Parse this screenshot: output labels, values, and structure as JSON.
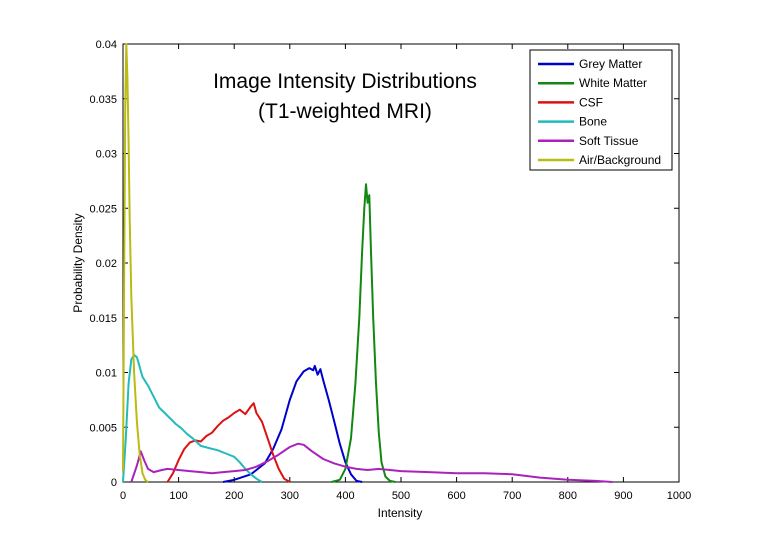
{
  "chart_data": {
    "type": "line",
    "title_lines": [
      "Image Intensity Distributions",
      "(T1-weighted MRI)"
    ],
    "xlabel": "Intensity",
    "ylabel": "Probability Density",
    "xlim": [
      0,
      1000
    ],
    "ylim": [
      0,
      0.04
    ],
    "x_ticks": [
      0,
      100,
      200,
      300,
      400,
      500,
      600,
      700,
      800,
      900,
      1000
    ],
    "x_tick_labels": [
      "0",
      "100",
      "200",
      "300",
      "400",
      "500",
      "600",
      "700",
      "800",
      "900",
      "1000"
    ],
    "y_ticks": [
      0,
      0.005,
      0.01,
      0.015,
      0.02,
      0.025,
      0.03,
      0.035,
      0.04
    ],
    "y_tick_labels": [
      "0",
      "0.005",
      "0.01",
      "0.015",
      "0.02",
      "0.025",
      "0.03",
      "0.035",
      "0.04"
    ],
    "grid": false,
    "legend_position": "top-right",
    "series": [
      {
        "name": "Grey Matter",
        "color": "#0000cc",
        "points": [
          [
            180,
            0
          ],
          [
            200,
            0.0002
          ],
          [
            230,
            0.0007
          ],
          [
            255,
            0.0017
          ],
          [
            270,
            0.003
          ],
          [
            285,
            0.0048
          ],
          [
            300,
            0.0075
          ],
          [
            312,
            0.0092
          ],
          [
            325,
            0.0101
          ],
          [
            335,
            0.0104
          ],
          [
            342,
            0.0102
          ],
          [
            345,
            0.0106
          ],
          [
            350,
            0.0098
          ],
          [
            355,
            0.0103
          ],
          [
            360,
            0.0093
          ],
          [
            370,
            0.0075
          ],
          [
            380,
            0.0055
          ],
          [
            390,
            0.0035
          ],
          [
            400,
            0.0018
          ],
          [
            410,
            0.0007
          ],
          [
            420,
            0.0001
          ],
          [
            430,
            0
          ]
        ]
      },
      {
        "name": "White Matter",
        "color": "#118811",
        "points": [
          [
            375,
            0
          ],
          [
            390,
            0.0002
          ],
          [
            400,
            0.0012
          ],
          [
            410,
            0.004
          ],
          [
            418,
            0.009
          ],
          [
            425,
            0.015
          ],
          [
            430,
            0.021
          ],
          [
            434,
            0.025
          ],
          [
            437,
            0.0272
          ],
          [
            440,
            0.0255
          ],
          [
            443,
            0.0262
          ],
          [
            446,
            0.021
          ],
          [
            450,
            0.015
          ],
          [
            455,
            0.009
          ],
          [
            460,
            0.0045
          ],
          [
            465,
            0.0018
          ],
          [
            472,
            0.0005
          ],
          [
            480,
            0.0001
          ],
          [
            490,
            0
          ]
        ]
      },
      {
        "name": "CSF",
        "color": "#dd1111",
        "points": [
          [
            80,
            0
          ],
          [
            90,
            0.0008
          ],
          [
            100,
            0.002
          ],
          [
            110,
            0.003
          ],
          [
            120,
            0.0036
          ],
          [
            130,
            0.0038
          ],
          [
            140,
            0.0037
          ],
          [
            150,
            0.0042
          ],
          [
            160,
            0.0045
          ],
          [
            170,
            0.0051
          ],
          [
            180,
            0.0056
          ],
          [
            190,
            0.0059
          ],
          [
            200,
            0.0063
          ],
          [
            210,
            0.0066
          ],
          [
            220,
            0.0062
          ],
          [
            230,
            0.0069
          ],
          [
            235,
            0.0072
          ],
          [
            240,
            0.0063
          ],
          [
            250,
            0.0055
          ],
          [
            260,
            0.004
          ],
          [
            270,
            0.0025
          ],
          [
            280,
            0.0012
          ],
          [
            290,
            0.0003
          ],
          [
            300,
            0
          ]
        ]
      },
      {
        "name": "Bone",
        "color": "#22bbbb",
        "points": [
          [
            0,
            0
          ],
          [
            5,
            0.004
          ],
          [
            10,
            0.009
          ],
          [
            15,
            0.0112
          ],
          [
            20,
            0.0116
          ],
          [
            25,
            0.0114
          ],
          [
            30,
            0.0105
          ],
          [
            35,
            0.0096
          ],
          [
            45,
            0.0088
          ],
          [
            55,
            0.0078
          ],
          [
            65,
            0.0068
          ],
          [
            75,
            0.0063
          ],
          [
            85,
            0.0058
          ],
          [
            95,
            0.0053
          ],
          [
            105,
            0.0049
          ],
          [
            115,
            0.0044
          ],
          [
            125,
            0.004
          ],
          [
            140,
            0.0033
          ],
          [
            155,
            0.0031
          ],
          [
            170,
            0.0029
          ],
          [
            185,
            0.0026
          ],
          [
            200,
            0.0023
          ],
          [
            210,
            0.0018
          ],
          [
            220,
            0.0012
          ],
          [
            230,
            0.0007
          ],
          [
            240,
            0.0003
          ],
          [
            250,
            0
          ]
        ]
      },
      {
        "name": "Soft Tissue",
        "color": "#aa22bb",
        "points": [
          [
            15,
            0
          ],
          [
            25,
            0.0015
          ],
          [
            32,
            0.0028
          ],
          [
            38,
            0.002
          ],
          [
            45,
            0.0012
          ],
          [
            55,
            0.0009
          ],
          [
            70,
            0.0011
          ],
          [
            80,
            0.0012
          ],
          [
            100,
            0.0011
          ],
          [
            120,
            0.001
          ],
          [
            140,
            0.0009
          ],
          [
            160,
            0.0008
          ],
          [
            180,
            0.0009
          ],
          [
            200,
            0.001
          ],
          [
            220,
            0.0011
          ],
          [
            240,
            0.0014
          ],
          [
            260,
            0.0019
          ],
          [
            280,
            0.0025
          ],
          [
            300,
            0.0032
          ],
          [
            315,
            0.0035
          ],
          [
            325,
            0.0034
          ],
          [
            340,
            0.0028
          ],
          [
            360,
            0.0021
          ],
          [
            380,
            0.0017
          ],
          [
            400,
            0.0014
          ],
          [
            420,
            0.0012
          ],
          [
            440,
            0.0011
          ],
          [
            460,
            0.0012
          ],
          [
            480,
            0.0011
          ],
          [
            500,
            0.001
          ],
          [
            550,
            0.0009
          ],
          [
            600,
            0.0008
          ],
          [
            650,
            0.0008
          ],
          [
            700,
            0.0007
          ],
          [
            750,
            0.0004
          ],
          [
            800,
            0.0002
          ],
          [
            850,
            0.0001
          ],
          [
            880,
            0
          ]
        ]
      },
      {
        "name": "Air/Background",
        "color": "#bbbb11",
        "points": [
          [
            0,
            0.001
          ],
          [
            2,
            0.018
          ],
          [
            4,
            0.034
          ],
          [
            6,
            0.04
          ],
          [
            8,
            0.037
          ],
          [
            10,
            0.031
          ],
          [
            12,
            0.024
          ],
          [
            15,
            0.017
          ],
          [
            20,
            0.01
          ],
          [
            25,
            0.0055
          ],
          [
            30,
            0.0025
          ],
          [
            35,
            0.0008
          ],
          [
            40,
            0.0002
          ],
          [
            45,
            0
          ]
        ]
      }
    ]
  }
}
